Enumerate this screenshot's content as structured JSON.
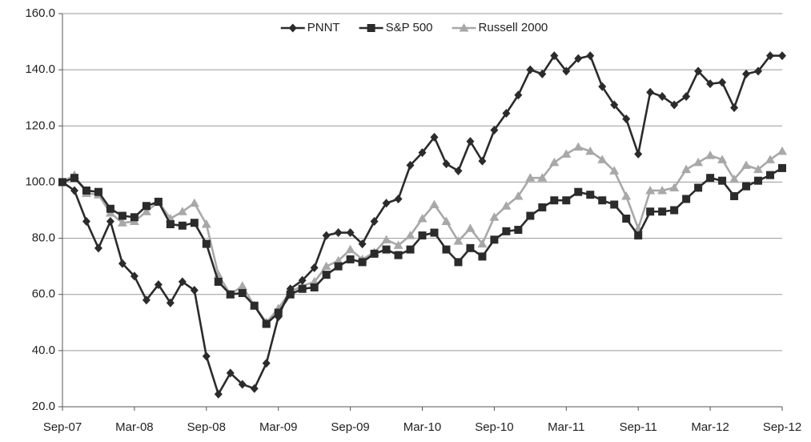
{
  "chart_data": {
    "type": "line",
    "categories": [
      "Sep-07",
      null,
      null,
      null,
      null,
      null,
      "Mar-08",
      null,
      null,
      null,
      null,
      null,
      "Sep-08",
      null,
      null,
      null,
      null,
      null,
      "Mar-09",
      null,
      null,
      null,
      null,
      null,
      "Sep-09",
      null,
      null,
      null,
      null,
      null,
      "Mar-10",
      null,
      null,
      null,
      null,
      null,
      "Sep-10",
      null,
      null,
      null,
      null,
      null,
      "Mar-11",
      null,
      null,
      null,
      null,
      null,
      "Sep-11",
      null,
      null,
      null,
      null,
      null,
      "Mar-12",
      null,
      null,
      null,
      null,
      null,
      "Sep-12"
    ],
    "series": [
      {
        "name": "PNNT",
        "color": "#2b2b2b",
        "marker": "diamond",
        "values": [
          100,
          97,
          86,
          76.5,
          86,
          71,
          66.5,
          58,
          63.5,
          57,
          64.5,
          61.5,
          38,
          24.5,
          32,
          28,
          26.5,
          35.5,
          52,
          62,
          65,
          69.5,
          81,
          82,
          82,
          78,
          86,
          92.5,
          94,
          106,
          110.5,
          116,
          106.5,
          104,
          114.5,
          107.5,
          118.5,
          124.5,
          131,
          140,
          138.5,
          145,
          139.5,
          144,
          145,
          134,
          127.5,
          122.5,
          110,
          132,
          130.5,
          127.5,
          130.5,
          139.5,
          135,
          135.5,
          126.5,
          138.5,
          139.5,
          145,
          145
        ]
      },
      {
        "name": "S&P 500",
        "color": "#2b2b2b",
        "marker": "square",
        "values": [
          100,
          101.5,
          97,
          96.5,
          90.5,
          88,
          87.5,
          91.5,
          93,
          85,
          84.5,
          85.5,
          78,
          64.5,
          60,
          60.5,
          56,
          49.5,
          53.5,
          60,
          62,
          62.5,
          67,
          70,
          72.5,
          71.5,
          74.5,
          76,
          74,
          76,
          81,
          82,
          76,
          71.5,
          76.5,
          73.5,
          79.5,
          82.5,
          83,
          88,
          91,
          93.5,
          93.5,
          96.5,
          95.5,
          93.5,
          92,
          87,
          81,
          89.5,
          89.5,
          90,
          94,
          98,
          101.5,
          100.5,
          95,
          98.5,
          100.5,
          102.5,
          105
        ]
      },
      {
        "name": "Russell 2000",
        "color": "#a8a8a8",
        "marker": "triangle",
        "values": [
          100,
          102.5,
          96,
          95.5,
          89,
          85.5,
          86,
          89.5,
          93,
          87,
          89.5,
          92.5,
          85,
          67,
          60,
          63,
          56,
          50,
          55,
          61,
          63,
          64.5,
          70,
          72,
          76,
          72.5,
          75,
          79.5,
          77.5,
          81,
          87,
          92,
          86,
          79,
          83.5,
          78,
          87.5,
          91.5,
          95,
          101.5,
          101.5,
          107,
          110,
          112.5,
          111,
          108,
          104,
          95,
          83.5,
          97,
          97,
          98,
          104.5,
          107,
          109.5,
          108,
          101,
          106,
          104.5,
          108,
          111
        ]
      }
    ],
    "ylim": [
      20,
      160
    ],
    "yticks": [
      {
        "value": 20,
        "label": "20.0"
      },
      {
        "value": 40,
        "label": "40.0"
      },
      {
        "value": 60,
        "label": "60.0"
      },
      {
        "value": 80,
        "label": "80.0"
      },
      {
        "value": 100,
        "label": "100.0"
      },
      {
        "value": 120,
        "label": "120.0"
      },
      {
        "value": 140,
        "label": "140.0"
      },
      {
        "value": 160,
        "label": "160.0"
      }
    ],
    "grid": true,
    "legend": "top"
  }
}
